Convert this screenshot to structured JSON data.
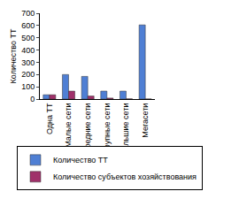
{
  "chart_data": {
    "type": "bar",
    "y_label": "Количество ТТ",
    "categories": [
      "Одна ТТ",
      "Малые сети",
      "Средние сети",
      "Крупные сети",
      "Большие сети",
      "Мегасети"
    ],
    "series": [
      {
        "name": "Количество ТТ",
        "color": "#4f7fd4",
        "values": [
          35,
          200,
          185,
          65,
          65,
          605
        ]
      },
      {
        "name": "Количество субъектов хозяйствования",
        "color": "#a0306a",
        "values": [
          35,
          65,
          25,
          8,
          2,
          1
        ]
      }
    ],
    "ylim": [
      0,
      700
    ],
    "yticks": [
      0,
      100,
      200,
      300,
      400,
      500,
      600,
      700
    ],
    "grid": false,
    "legend": "bottom"
  }
}
